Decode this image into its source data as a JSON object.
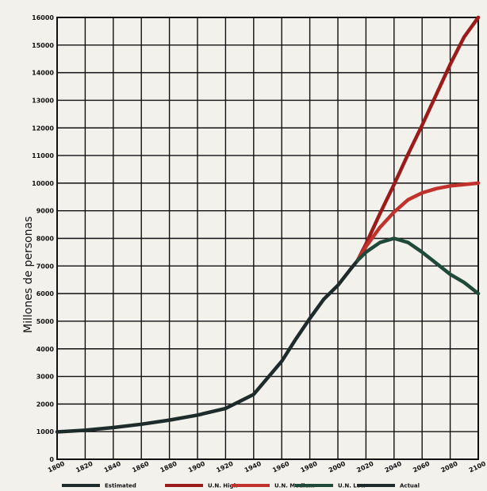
{
  "chart_data": {
    "type": "line",
    "ylabel": "Millones de personas",
    "xlabel": "",
    "xlim": [
      1800,
      2100
    ],
    "ylim": [
      0,
      16000
    ],
    "x_ticks": [
      1800,
      1820,
      1840,
      1860,
      1880,
      1900,
      1920,
      1940,
      1960,
      1980,
      2000,
      2020,
      2040,
      2060,
      2080,
      2100
    ],
    "y_ticks": [
      0,
      1000,
      2000,
      3000,
      4000,
      5000,
      6000,
      7000,
      8000,
      9000,
      10000,
      11000,
      12000,
      13000,
      14000,
      15000,
      16000
    ],
    "x_tick_labels": [
      "1800",
      "1820",
      "1840",
      "1860",
      "1880",
      "1900",
      "1920",
      "1940",
      "1960",
      "1980",
      "2000",
      "2020",
      "2040",
      "2060",
      "2080",
      "2100"
    ],
    "y_tick_labels": [
      "0",
      "1000",
      "2000",
      "3000",
      "4000",
      "5000",
      "6000",
      "7000",
      "8000",
      "9000",
      "10000",
      "11000",
      "12000",
      "13000",
      "14000",
      "15000",
      "16000"
    ],
    "grid": true,
    "legend_placement": "bottom",
    "series": [
      {
        "name": "Estimated",
        "color": "#1d2b2a",
        "points": [
          [
            1800,
            990
          ],
          [
            1820,
            1050
          ],
          [
            1840,
            1150
          ],
          [
            1860,
            1270
          ],
          [
            1880,
            1420
          ],
          [
            1900,
            1600
          ],
          [
            1920,
            1840
          ],
          [
            1940,
            2350
          ],
          [
            1950,
            2950
          ],
          [
            1960,
            3550
          ],
          [
            1970,
            4350
          ],
          [
            1980,
            5100
          ],
          [
            1990,
            5800
          ],
          [
            2000,
            6300
          ],
          [
            2010,
            6950
          ],
          [
            2014,
            7200
          ]
        ]
      },
      {
        "name": "U.N. High",
        "color": "#9b1b1b",
        "points": [
          [
            2014,
            7200
          ],
          [
            2020,
            7800
          ],
          [
            2030,
            8900
          ],
          [
            2040,
            9950
          ],
          [
            2050,
            11050
          ],
          [
            2060,
            12100
          ],
          [
            2070,
            13200
          ],
          [
            2080,
            14300
          ],
          [
            2090,
            15300
          ],
          [
            2100,
            16000
          ]
        ]
      },
      {
        "name": "U.N. Medium",
        "color": "#c0322b",
        "points": [
          [
            2014,
            7200
          ],
          [
            2020,
            7700
          ],
          [
            2030,
            8400
          ],
          [
            2040,
            8950
          ],
          [
            2050,
            9400
          ],
          [
            2060,
            9650
          ],
          [
            2070,
            9800
          ],
          [
            2080,
            9900
          ],
          [
            2090,
            9950
          ],
          [
            2100,
            10000
          ]
        ]
      },
      {
        "name": "U.N. Low",
        "color": "#1f4a3a",
        "points": [
          [
            2014,
            7200
          ],
          [
            2020,
            7500
          ],
          [
            2030,
            7850
          ],
          [
            2040,
            8000
          ],
          [
            2050,
            7850
          ],
          [
            2060,
            7500
          ],
          [
            2070,
            7100
          ],
          [
            2080,
            6700
          ],
          [
            2090,
            6400
          ],
          [
            2100,
            6000
          ]
        ]
      },
      {
        "name": "Actual",
        "color": "#1d2b2a",
        "points": []
      }
    ]
  }
}
